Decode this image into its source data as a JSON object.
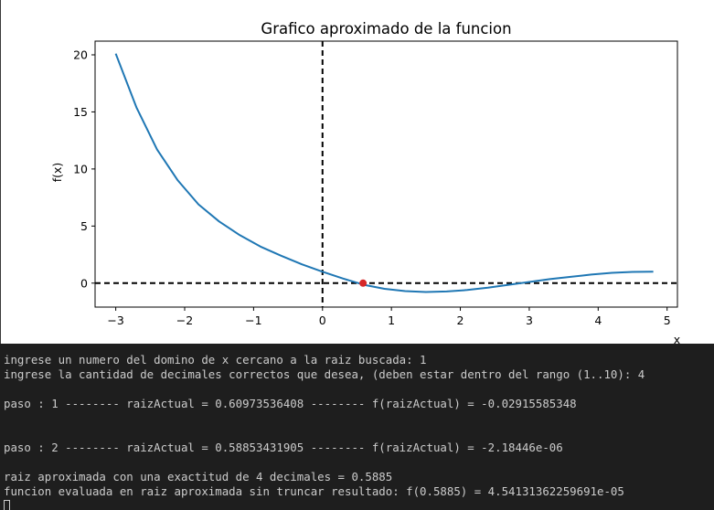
{
  "plot": {
    "chart_data": {
      "type": "line",
      "title": "Grafico aproximado de la funcion",
      "xlabel": "x",
      "ylabel": "f(x)",
      "xlim": [
        -3.3,
        5.15
      ],
      "ylim": [
        -2.1,
        21.2
      ],
      "xticks": [
        -3,
        -2,
        -1,
        0,
        1,
        2,
        3,
        4,
        5
      ],
      "yticks": [
        0,
        5,
        10,
        15,
        20
      ],
      "grid": false,
      "series": [
        {
          "color": "#1f77b4",
          "x": [
            -3.0,
            -2.7,
            -2.4,
            -2.1,
            -1.8,
            -1.5,
            -1.2,
            -0.9,
            -0.6,
            -0.3,
            0.0,
            0.3,
            0.6,
            0.9,
            1.2,
            1.5,
            1.8,
            2.1,
            2.4,
            2.7,
            3.0,
            3.3,
            3.6,
            3.9,
            4.2,
            4.5,
            4.8
          ],
          "y": [
            20.1,
            15.4,
            11.7,
            9.0,
            6.9,
            5.4,
            4.2,
            3.2,
            2.4,
            1.65,
            1.0,
            0.4,
            -0.15,
            -0.5,
            -0.7,
            -0.78,
            -0.73,
            -0.6,
            -0.4,
            -0.15,
            0.1,
            0.35,
            0.55,
            0.75,
            0.9,
            0.98,
            1.0
          ]
        }
      ],
      "reference_lines": [
        {
          "orientation": "horizontal",
          "value": 0,
          "style": "dashed",
          "color": "#000000"
        },
        {
          "orientation": "vertical",
          "value": 0,
          "style": "dashed",
          "color": "#000000"
        }
      ],
      "marker": {
        "x": 0.5885,
        "y": 0,
        "color": "#d62728"
      }
    }
  },
  "terminal": {
    "lines": [
      "ingrese un numero del domino de x cercano a la raiz buscada: 1",
      "ingrese la cantidad de decimales correctos que desea, (deben estar dentro del rango (1..10): 4",
      "",
      "paso : 1 -------- raizActual = 0.60973536408 -------- f(raizActual) = -0.02915585348",
      "",
      "",
      "paso : 2 -------- raizActual = 0.58853431905 -------- f(raizActual) = -2.18446e-06",
      "",
      "raiz aproximada con una exactitud de 4 decimales = 0.5885",
      "funcion evaluada en raiz aproximada sin truncar resultado: f(0.5885) = 4.54131362259691e-05"
    ]
  }
}
